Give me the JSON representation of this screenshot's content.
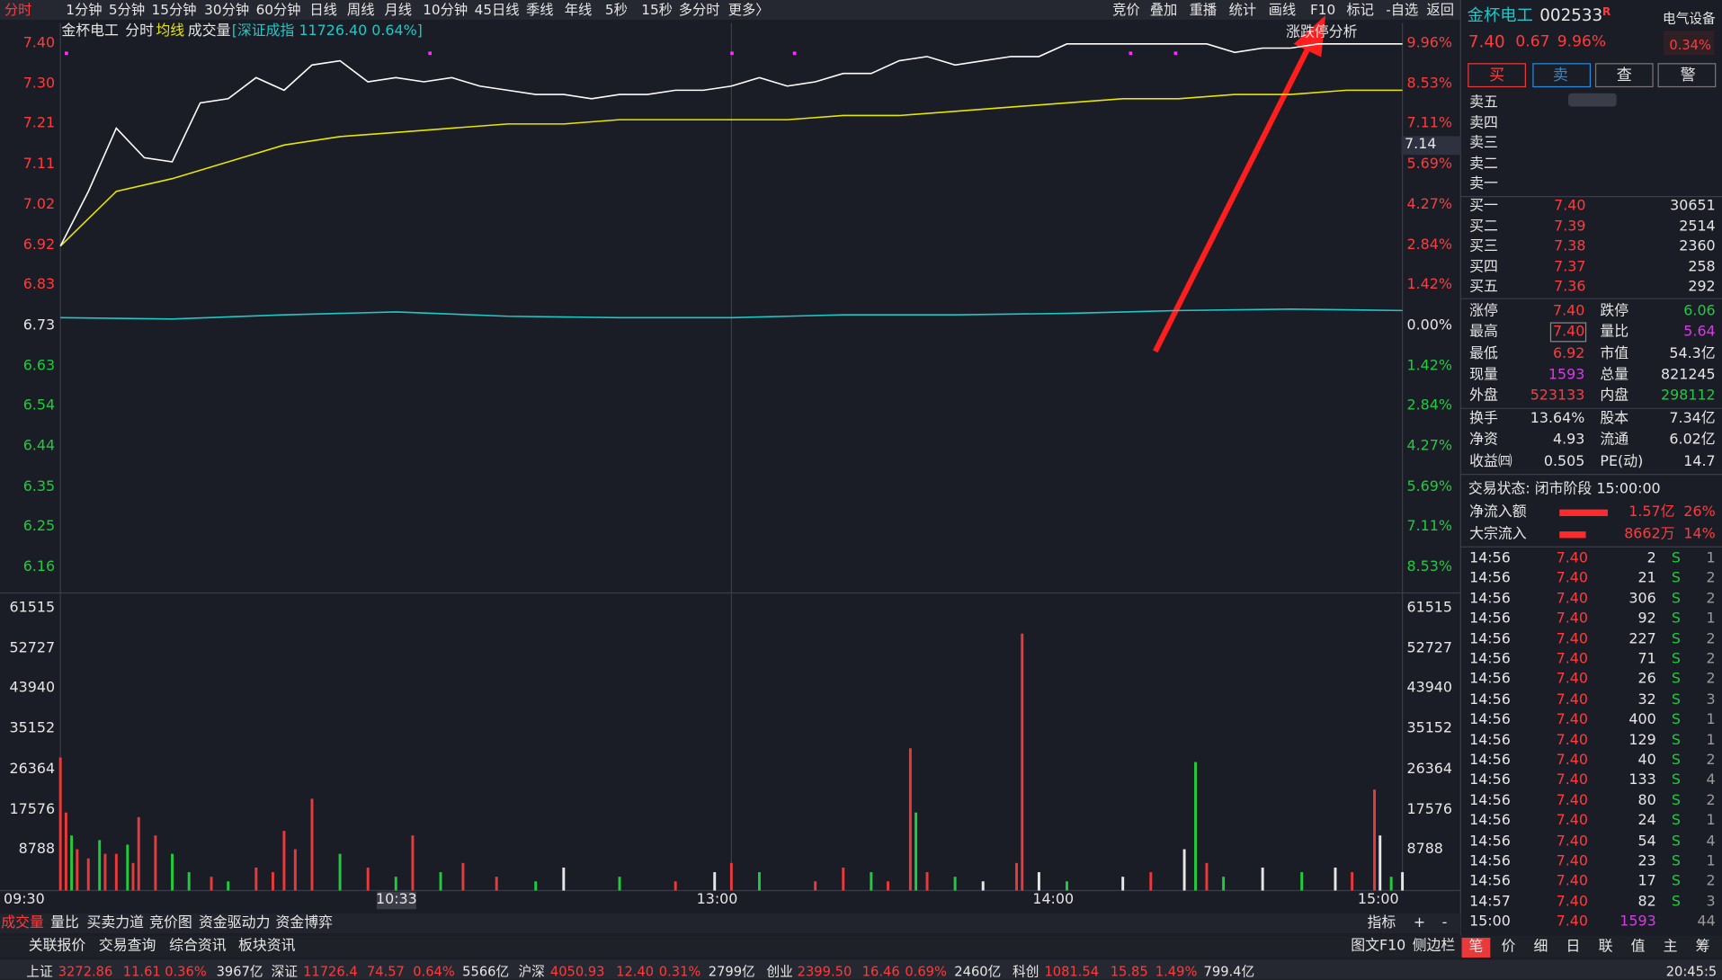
{
  "toolbar": {
    "tabs": [
      "分时",
      "1分钟",
      "5分钟",
      "15分钟",
      "30分钟",
      "60分钟",
      "日线",
      "周线",
      "月线",
      "10分钟",
      "45日线",
      "季线",
      "年线",
      "5秒",
      "15秒",
      "多分时",
      "更多〉"
    ],
    "right": [
      "竞价",
      "叠加",
      "重播",
      "统计",
      "画线",
      "F10",
      "标记",
      "-自选",
      "返回"
    ]
  },
  "chart": {
    "header": {
      "name": "金杯电工",
      "mode": "分时",
      "avg": "均线",
      "vol": "成交量",
      "index": "[深证成指 11726.40 0.64%]"
    },
    "limit_tool": "涨跌停分析",
    "price_ticks": [
      "7.40",
      "7.30",
      "7.21",
      "7.11",
      "7.02",
      "6.92",
      "6.83",
      "6.73",
      "6.63",
      "6.54",
      "6.44",
      "6.35",
      "6.25",
      "6.16"
    ],
    "pct_ticks": [
      "9.96%",
      "8.53%",
      "7.11%",
      "5.69%",
      "4.27%",
      "2.84%",
      "1.42%",
      "0.00%",
      "1.42%",
      "2.84%",
      "4.27%",
      "5.69%",
      "7.11%",
      "8.53%"
    ],
    "vol_ticks": [
      "61515",
      "52727",
      "43940",
      "35152",
      "26364",
      "17576",
      "8788"
    ],
    "time_labels": [
      "09:30",
      "10:33",
      "13:00",
      "14:00",
      "15:00"
    ],
    "cursor_price": "7.14",
    "price_range": [
      6.73,
      7.4
    ],
    "pct_max": 9.96,
    "vol_max": 61515,
    "minutes": 240,
    "price": [
      6.92,
      7.05,
      7.2,
      7.13,
      7.12,
      7.26,
      7.27,
      7.32,
      7.29,
      7.35,
      7.36,
      7.31,
      7.32,
      7.31,
      7.32,
      7.3,
      7.29,
      7.28,
      7.28,
      7.27,
      7.28,
      7.28,
      7.29,
      7.29,
      7.3,
      7.32,
      7.3,
      7.31,
      7.33,
      7.33,
      7.36,
      7.37,
      7.35,
      7.36,
      7.37,
      7.37,
      7.4,
      7.4,
      7.4,
      7.4,
      7.4,
      7.4,
      7.38,
      7.39,
      7.39,
      7.4,
      7.4,
      7.4,
      7.4
    ],
    "avg": [
      6.92,
      7.05,
      7.08,
      7.12,
      7.16,
      7.18,
      7.19,
      7.2,
      7.21,
      7.21,
      7.22,
      7.22,
      7.22,
      7.22,
      7.23,
      7.23,
      7.24,
      7.25,
      7.26,
      7.27,
      7.27,
      7.28,
      7.28,
      7.29,
      7.29
    ],
    "index_pct": [
      0.3,
      0.25,
      0.4,
      0.5,
      0.35,
      0.3,
      0.3,
      0.4,
      0.4,
      0.45,
      0.55,
      0.6,
      0.55
    ],
    "volume": {
      "minutes": [
        0,
        1,
        2,
        3,
        5,
        7,
        8,
        10,
        12,
        13,
        14,
        17,
        20,
        23,
        27,
        30,
        35,
        38,
        40,
        42,
        45,
        50,
        55,
        60,
        63,
        68,
        72,
        78,
        85,
        90,
        100,
        110,
        117,
        120,
        125,
        135,
        140,
        145,
        148,
        152,
        153,
        155,
        160,
        165,
        171,
        172,
        175,
        180,
        190,
        195,
        201,
        203,
        205,
        208,
        215,
        222,
        228,
        231,
        235,
        236,
        238,
        240
      ],
      "values": [
        29000,
        17000,
        12000,
        9000,
        7000,
        11000,
        8000,
        8000,
        10000,
        6000,
        16000,
        12000,
        8000,
        4000,
        3000,
        2000,
        5000,
        4000,
        13000,
        9000,
        20000,
        8000,
        5000,
        3000,
        12000,
        4000,
        6000,
        3000,
        2000,
        5000,
        3000,
        2000,
        4000,
        6000,
        4000,
        2000,
        5000,
        4000,
        2000,
        31000,
        17000,
        4000,
        3000,
        2000,
        6000,
        56000,
        4000,
        2000,
        3000,
        4000,
        9000,
        28000,
        6000,
        3000,
        5000,
        4000,
        5000,
        4000,
        22000,
        12000,
        3000,
        4000
      ],
      "colors": [
        "#e83a3a",
        "#e83a3a",
        "#1fcc3c",
        "#e83a3a",
        "#e83a3a",
        "#1fcc3c",
        "#e83a3a",
        "#e83a3a",
        "#1fcc3c",
        "#e83a3a",
        "#e83a3a",
        "#e83a3a",
        "#1fcc3c",
        "#1fcc3c",
        "#e83a3a",
        "#1fcc3c",
        "#e83a3a",
        "#e83a3a",
        "#e83a3a",
        "#e83a3a",
        "#e83a3a",
        "#1fcc3c",
        "#e83a3a",
        "#1fcc3c",
        "#e83a3a",
        "#1fcc3c",
        "#e83a3a",
        "#e83a3a",
        "#1fcc3c",
        "#e6e6e6",
        "#1fcc3c",
        "#e83a3a",
        "#e6e6e6",
        "#e83a3a",
        "#1fcc3c",
        "#e83a3a",
        "#e83a3a",
        "#1fcc3c",
        "#e83a3a",
        "#e83a3a",
        "#1fcc3c",
        "#e83a3a",
        "#1fcc3c",
        "#e6e6e6",
        "#e83a3a",
        "#e83a3a",
        "#e6e6e6",
        "#1fcc3c",
        "#e6e6e6",
        "#e83a3a",
        "#e6e6e6",
        "#1fcc3c",
        "#e83a3a",
        "#1fcc3c",
        "#e6e6e6",
        "#1fcc3c",
        "#e6e6e6",
        "#e83a3a",
        "#e83a3a",
        "#e6e6e6",
        "#1fcc3c",
        "#e6e6e6"
      ]
    }
  },
  "bottom_tabs": [
    "成交量",
    "量比",
    "买卖力道",
    "竞价图",
    "资金驱动力",
    "资金博弈"
  ],
  "indicator": [
    "指标",
    "+",
    "-"
  ],
  "links": [
    "关联报价",
    "交易查询",
    "综合资讯",
    "板块资讯"
  ],
  "links_right": [
    "图文F10",
    "侧边栏"
  ],
  "status": {
    "items": [
      "上证",
      "3272.86",
      "11.61",
      "0.36%",
      "3967亿",
      "深证",
      "11726.4",
      "74.57",
      "0.64%",
      "5566亿",
      "沪深",
      "4050.93",
      "12.40",
      "0.31%",
      "2799亿",
      "创业",
      "2399.50",
      "16.46",
      "0.69%",
      "2460亿",
      "科创",
      "1081.54",
      "15.85",
      "1.49%",
      "799.4亿"
    ],
    "time": "20:45:5"
  },
  "quote": {
    "name": "金杯电工",
    "code": "002533",
    "flag": "R",
    "sector": "电气设备",
    "sector_pct": "0.34%",
    "price": "7.40",
    "change": "0.67",
    "pct": "9.96%",
    "buttons": [
      "买",
      "卖",
      "查",
      "警"
    ],
    "asks": [
      "卖五",
      "卖四",
      "卖三",
      "卖二",
      "卖一"
    ],
    "bids": [
      [
        "买一",
        "7.40",
        "30651"
      ],
      [
        "买二",
        "7.39",
        "2514"
      ],
      [
        "买三",
        "7.38",
        "2360"
      ],
      [
        "买四",
        "7.37",
        "258"
      ],
      [
        "买五",
        "7.36",
        "292"
      ]
    ],
    "stats": [
      [
        "涨停",
        "7.40",
        "跌停",
        "6.06"
      ],
      [
        "最高",
        "7.40",
        "量比",
        "5.64"
      ],
      [
        "最低",
        "6.92",
        "市值",
        "54.3亿"
      ],
      [
        "现量",
        "1593",
        "总量",
        "821245"
      ],
      [
        "外盘",
        "523133",
        "内盘",
        "298112"
      ],
      [
        "换手",
        "13.64%",
        "股本",
        "7.34亿"
      ],
      [
        "净资",
        "4.93",
        "流通",
        "6.02亿"
      ],
      [
        "收益㈣",
        "0.505",
        "PE(动)",
        "14.7"
      ]
    ],
    "trade_state": "交易状态: 闭市阶段 15:00:00",
    "flows": [
      [
        "净流入额",
        "1.57亿",
        "26%"
      ],
      [
        "大宗流入",
        "8662万",
        "14%"
      ]
    ],
    "trades": [
      [
        "14:56",
        "7.40",
        "2",
        "S",
        "1"
      ],
      [
        "14:56",
        "7.40",
        "21",
        "S",
        "2"
      ],
      [
        "14:56",
        "7.40",
        "306",
        "S",
        "2"
      ],
      [
        "14:56",
        "7.40",
        "92",
        "S",
        "1"
      ],
      [
        "14:56",
        "7.40",
        "227",
        "S",
        "2"
      ],
      [
        "14:56",
        "7.40",
        "71",
        "S",
        "2"
      ],
      [
        "14:56",
        "7.40",
        "26",
        "S",
        "2"
      ],
      [
        "14:56",
        "7.40",
        "32",
        "S",
        "3"
      ],
      [
        "14:56",
        "7.40",
        "400",
        "S",
        "1"
      ],
      [
        "14:56",
        "7.40",
        "129",
        "S",
        "1"
      ],
      [
        "14:56",
        "7.40",
        "40",
        "S",
        "2"
      ],
      [
        "14:56",
        "7.40",
        "133",
        "S",
        "4"
      ],
      [
        "14:56",
        "7.40",
        "80",
        "S",
        "2"
      ],
      [
        "14:56",
        "7.40",
        "24",
        "S",
        "1"
      ],
      [
        "14:56",
        "7.40",
        "54",
        "S",
        "4"
      ],
      [
        "14:56",
        "7.40",
        "23",
        "S",
        "1"
      ],
      [
        "14:56",
        "7.40",
        "17",
        "S",
        "2"
      ],
      [
        "14:57",
        "7.40",
        "82",
        "S",
        "3"
      ],
      [
        "15:00",
        "7.40",
        "1593",
        "",
        "44"
      ]
    ],
    "tabs": [
      "笔",
      "价",
      "细",
      "日",
      "联",
      "值",
      "主",
      "筹"
    ]
  }
}
